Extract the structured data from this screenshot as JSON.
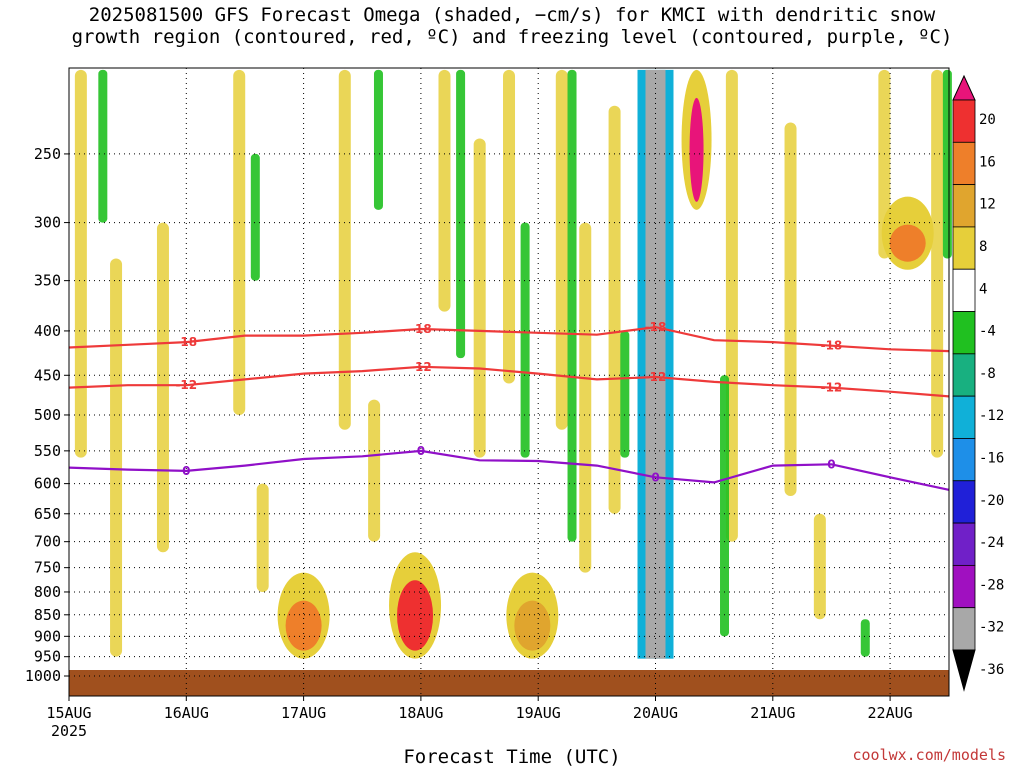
{
  "chart_data": {
    "type": "heatmap",
    "title": [
      "2025081500 GFS Forecast Omega (shaded, −cm/s) for KMCI with dendritic snow",
      "growth region (contoured, red, ºC) and freezing level (contoured, purple, ºC)"
    ],
    "xlabel": "Forecast Time (UTC)",
    "ylabel": "",
    "credit": "coolwx.com/models",
    "x_ticks": [
      "15AUG",
      "16AUG",
      "17AUG",
      "18AUG",
      "19AUG",
      "20AUG",
      "21AUG",
      "22AUG"
    ],
    "x_year": "2025",
    "xlim_days": [
      0,
      7.5
    ],
    "y_ticks": [
      250,
      300,
      350,
      400,
      450,
      500,
      550,
      600,
      650,
      700,
      750,
      800,
      850,
      900,
      950,
      1000
    ],
    "ylim_hpa": [
      1000,
      200
    ],
    "grid": true,
    "colorbar": {
      "ticks": [
        20,
        16,
        12,
        8,
        4,
        -4,
        -8,
        -12,
        -16,
        -20,
        -24,
        -28,
        -32,
        -36
      ],
      "colors": [
        "#e8147a",
        "#ee3030",
        "#ee7f2a",
        "#e0a52e",
        "#e6cf3a",
        "#ffffff",
        "#20c020",
        "#18b080",
        "#10b0d8",
        "#1e8fe8",
        "#2020d8",
        "#7020c8",
        "#a010c0",
        "#a8a8a8",
        "#000000"
      ]
    },
    "contours": [
      {
        "label": "-18",
        "color": "#ee3a3a",
        "x_days": [
          0,
          0.5,
          1,
          1.5,
          2,
          2.5,
          3,
          3.5,
          4,
          4.5,
          5,
          5.5,
          6,
          6.5,
          7,
          7.5
        ],
        "p_hpa": [
          418,
          415,
          412,
          405,
          405,
          402,
          398,
          400,
          402,
          404,
          396,
          410,
          412,
          416,
          420,
          422
        ]
      },
      {
        "label": "-12",
        "color": "#ee3a3a",
        "x_days": [
          0,
          0.5,
          1,
          1.5,
          2,
          2.5,
          3,
          3.5,
          4,
          4.5,
          5,
          5.5,
          6,
          6.5,
          7,
          7.5
        ],
        "p_hpa": [
          465,
          462,
          462,
          455,
          448,
          445,
          440,
          442,
          448,
          455,
          452,
          458,
          462,
          465,
          470,
          476
        ]
      },
      {
        "label": "0",
        "color": "#9010c8",
        "x_days": [
          0,
          0.5,
          1,
          1.5,
          2,
          2.5,
          3,
          3.5,
          4,
          4.5,
          5,
          5.5,
          6,
          6.5,
          7,
          7.5
        ],
        "p_hpa": [
          575,
          578,
          580,
          572,
          562,
          558,
          550,
          564,
          565,
          572,
          590,
          598,
          572,
          570,
          590,
          610
        ]
      }
    ],
    "omega_regions": [
      {
        "x_day": 2.0,
        "p_lo": 760,
        "p_hi": 955,
        "value": 14
      },
      {
        "x_day": 2.95,
        "p_lo": 720,
        "p_hi": 955,
        "value": 18
      },
      {
        "x_day": 3.95,
        "p_lo": 760,
        "p_hi": 955,
        "value": 10
      },
      {
        "x_day": 5.0,
        "p_lo": 200,
        "p_hi": 955,
        "value": -36
      },
      {
        "x_day": 5.35,
        "p_lo": 200,
        "p_hi": 290,
        "value": 20
      },
      {
        "x_day": 7.15,
        "p_lo": 280,
        "p_hi": 340,
        "value": 12
      }
    ]
  }
}
